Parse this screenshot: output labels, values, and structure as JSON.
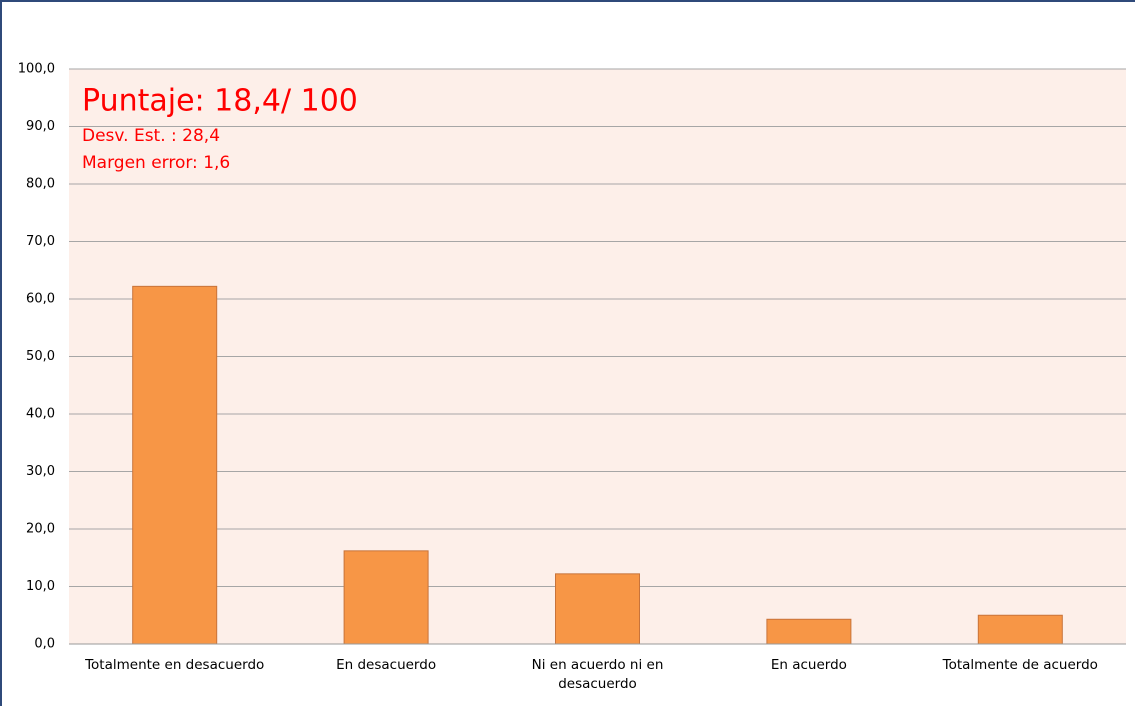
{
  "chart_data": {
    "type": "bar",
    "annotations": [
      "Puntaje: 18,4/ 100",
      "Desv. Est. : 28,4",
      "Margen error:  1,6"
    ],
    "categories": [
      "Totalmente en desacuerdo",
      "En desacuerdo",
      "Ni en acuerdo ni en desacuerdo",
      "En acuerdo",
      "Totalmente de acuerdo"
    ],
    "values": [
      62.2,
      16.2,
      12.2,
      4.3,
      5.0
    ],
    "color": "#f79646",
    "ylim": [
      0,
      100
    ],
    "yticks": [
      {
        "value": 0,
        "label": "0,0"
      },
      {
        "value": 10,
        "label": "10,0"
      },
      {
        "value": 20,
        "label": "20,0"
      },
      {
        "value": 30,
        "label": "30,0"
      },
      {
        "value": 40,
        "label": "40,0"
      },
      {
        "value": 50,
        "label": "50,0"
      },
      {
        "value": 60,
        "label": "60,0"
      },
      {
        "value": 70,
        "label": "70,0"
      },
      {
        "value": 80,
        "label": "80,0"
      },
      {
        "value": 90,
        "label": "90,0"
      },
      {
        "value": 100,
        "label": "100,0"
      }
    ],
    "grid": true
  }
}
